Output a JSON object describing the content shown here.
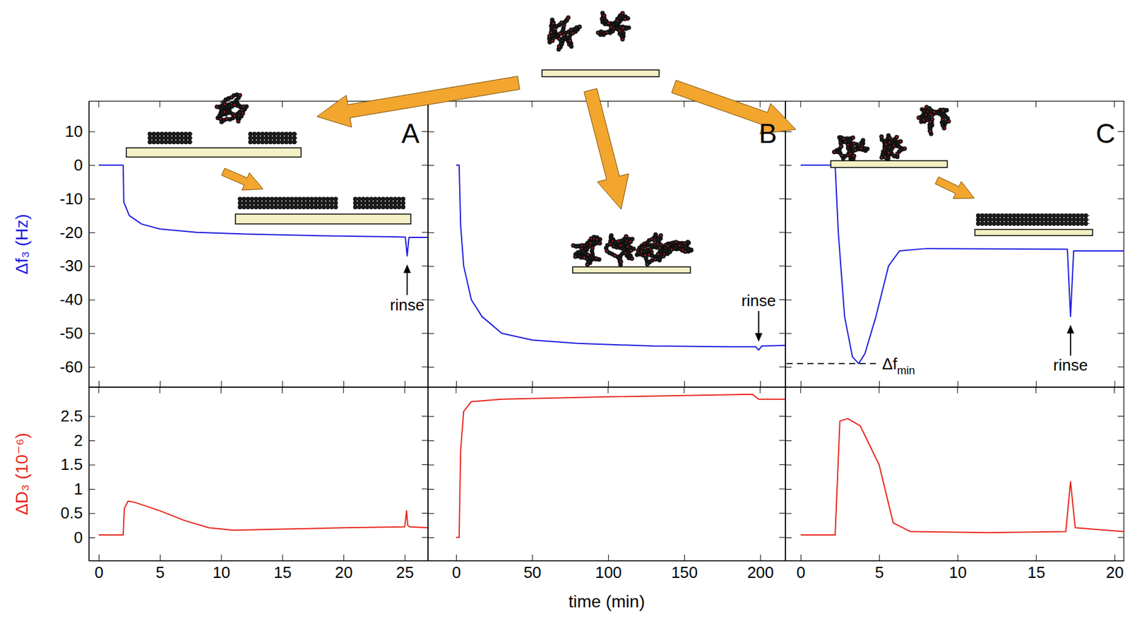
{
  "chart_data": [
    {
      "type": "line",
      "title": "A",
      "ylabel": "Δf₃ (Hz)",
      "x": [
        0,
        2,
        2.05,
        2.5,
        3.5,
        5,
        8,
        12,
        18,
        24,
        25.05,
        25.2,
        25.35,
        26.9
      ],
      "series": [
        {
          "color": "#1c1ce0",
          "values": [
            0,
            0,
            -11,
            -15,
            -17.5,
            -19,
            -20,
            -20.5,
            -21,
            -21.3,
            -21.4,
            -27,
            -21.5,
            -21.5
          ]
        }
      ],
      "xlim": [
        -0.8,
        26.9
      ],
      "ylim": [
        -66,
        19
      ],
      "xticks": [
        0,
        5,
        10,
        15,
        20,
        25
      ],
      "yticks": [
        -60,
        -50,
        -40,
        -30,
        -20,
        -10,
        0,
        10
      ],
      "tick_labels": "y",
      "annotations": [
        {
          "text": "rinse",
          "x": 25.2,
          "y": -29.5,
          "arrow": "up"
        }
      ]
    },
    {
      "type": "line",
      "title": "B",
      "x": [
        0,
        2,
        3,
        5,
        10,
        17,
        30,
        50,
        80,
        130,
        180,
        197,
        199,
        201,
        216.6
      ],
      "series": [
        {
          "color": "#1c1ce0",
          "values": [
            0,
            0,
            -18,
            -30,
            -40,
            -45,
            -50,
            -52,
            -53,
            -53.8,
            -54,
            -54,
            -55,
            -53.8,
            -53.6
          ]
        }
      ],
      "xlim": [
        -18.5,
        216.6
      ],
      "ylim": [
        -66,
        19
      ],
      "xticks": [
        0,
        50,
        100,
        150,
        200
      ],
      "yticks": [
        -60,
        -50,
        -40,
        -30,
        -20,
        -10,
        0,
        10
      ],
      "tick_labels": false,
      "annotations": [
        {
          "text": "rinse",
          "x": 199,
          "y": -52.5,
          "arrow": "down"
        }
      ]
    },
    {
      "type": "line",
      "title": "C",
      "x": [
        0,
        2.2,
        2.4,
        2.8,
        3.3,
        3.7,
        4.1,
        4.8,
        5.6,
        6.3,
        8,
        17,
        17.2,
        17.4,
        20.6
      ],
      "series": [
        {
          "color": "#1c1ce0",
          "values": [
            0,
            0,
            -20,
            -45,
            -57,
            -59,
            -56,
            -45,
            -30,
            -25.5,
            -24.8,
            -25,
            -45,
            -25.5,
            -25.5
          ]
        }
      ],
      "xlim": [
        -0.97,
        20.6
      ],
      "ylim": [
        -66,
        19
      ],
      "xticks": [
        0,
        5,
        10,
        15,
        20
      ],
      "yticks": [
        -60,
        -50,
        -40,
        -30,
        -20,
        -10,
        0,
        10
      ],
      "tick_labels": false,
      "annotations": [
        {
          "text": "Δf",
          "subscript": "min",
          "x": [
            -0.9,
            4.8
          ],
          "y": -59,
          "line_style": "dashed"
        },
        {
          "text": "rinse",
          "x": 17.2,
          "y": -47.5,
          "arrow": "up"
        }
      ]
    },
    {
      "type": "line",
      "ylabel": "ΔD₃ (10⁻⁶)",
      "x": [
        0,
        2,
        2.1,
        2.4,
        3,
        5,
        7,
        9,
        11,
        15,
        20,
        25,
        25.15,
        25.25,
        25.4,
        26.9
      ],
      "series": [
        {
          "color": "#e8261c",
          "values": [
            0.05,
            0.05,
            0.6,
            0.75,
            0.72,
            0.55,
            0.35,
            0.2,
            0.15,
            0.17,
            0.2,
            0.22,
            0.55,
            0.25,
            0.22,
            0.2
          ]
        }
      ],
      "xlim": [
        -0.8,
        26.9
      ],
      "ylim": [
        -0.48,
        3.1
      ],
      "xticks": [
        0,
        5,
        10,
        15,
        20,
        25
      ],
      "yticks": [
        0,
        0.5,
        1,
        1.5,
        2,
        2.5
      ]
    },
    {
      "type": "line",
      "xlabel": "time (min)",
      "x": [
        0,
        2,
        3,
        5,
        10,
        30,
        100,
        195,
        199,
        216.6
      ],
      "series": [
        {
          "color": "#e8261c",
          "values": [
            0,
            0,
            1.8,
            2.6,
            2.8,
            2.85,
            2.9,
            2.95,
            2.85,
            2.85
          ]
        }
      ],
      "xlim": [
        -18.5,
        216.6
      ],
      "ylim": [
        -0.48,
        3.1
      ],
      "xticks": [
        0,
        50,
        100,
        150,
        200
      ],
      "yticks": [
        0,
        0.5,
        1,
        1.5,
        2,
        2.5
      ],
      "tick_labels": "x"
    },
    {
      "type": "line",
      "x": [
        0,
        2.2,
        2.5,
        3,
        3.8,
        5,
        5.9,
        7,
        12,
        16.9,
        17.2,
        17.5,
        20.6
      ],
      "series": [
        {
          "color": "#e8261c",
          "values": [
            0.05,
            0.05,
            2.4,
            2.45,
            2.3,
            1.5,
            0.3,
            0.12,
            0.1,
            0.12,
            1.15,
            0.2,
            0.12
          ]
        }
      ],
      "xlim": [
        -0.97,
        20.6
      ],
      "ylim": [
        -0.48,
        3.1
      ],
      "xticks": [
        0,
        5,
        10,
        15,
        20
      ],
      "yticks": [
        0,
        0.5,
        1,
        1.5,
        2,
        2.5
      ],
      "tick_labels": "x"
    }
  ]
}
